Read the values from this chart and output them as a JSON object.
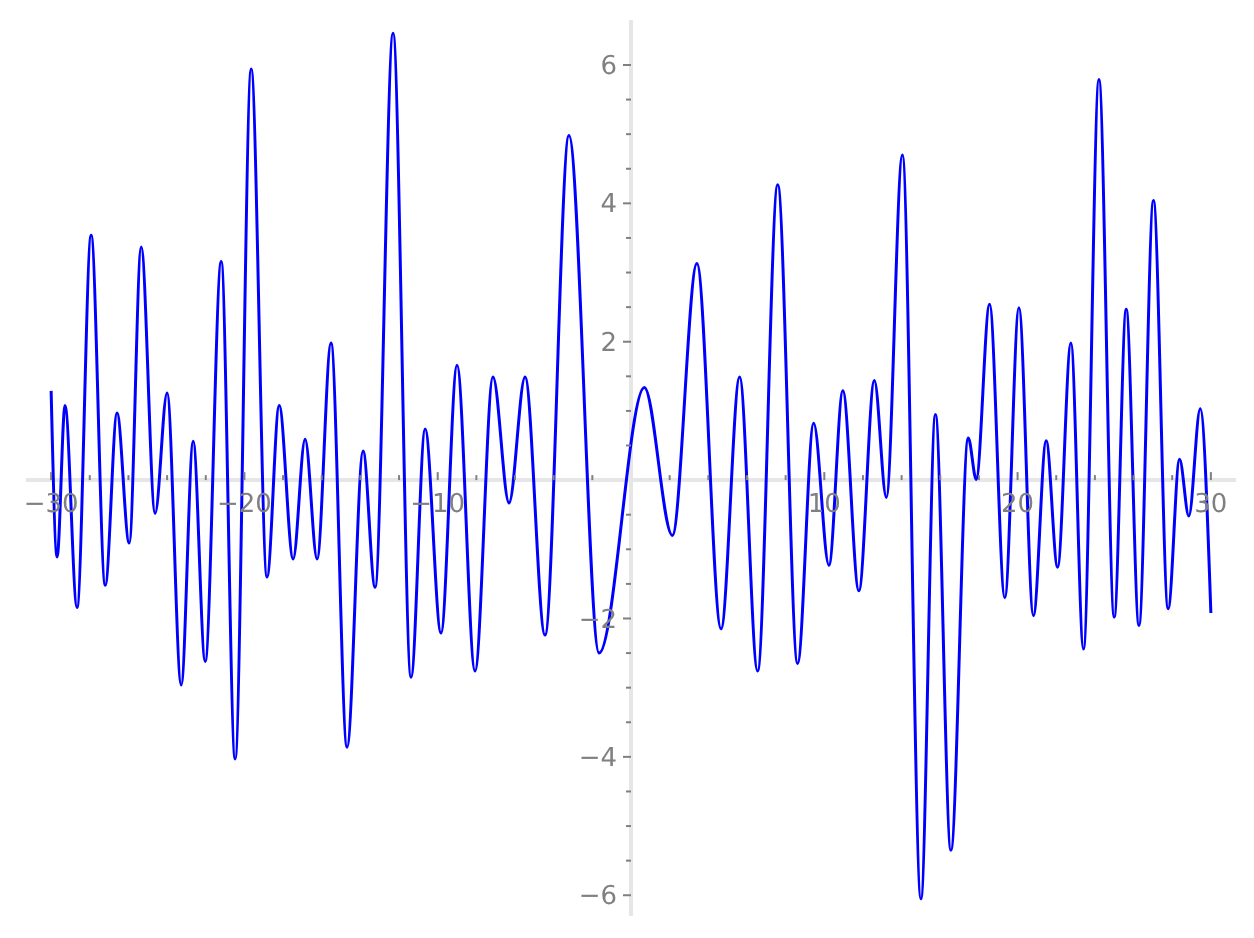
{
  "chart_data": {
    "type": "line",
    "marker": "none",
    "x": [
      -30,
      -29.69,
      -29.28,
      -28.66,
      -27.93,
      -27.2,
      -26.59,
      -25.96,
      -25.34,
      -24.62,
      -24.0,
      -23.27,
      -22.65,
      -22.03,
      -21.2,
      -20.48,
      -19.65,
      -18.83,
      -18.2,
      -17.48,
      -16.86,
      -16.24,
      -15.52,
      -14.69,
      -13.86,
      -13.24,
      -12.31,
      -11.38,
      -10.65,
      -9.83,
      -9.0,
      -8.07,
      -7.14,
      -6.31,
      -5.48,
      -4.45,
      -3.21,
      -1.65,
      0.69,
      2.14,
      3.41,
      4.66,
      5.62,
      6.55,
      7.59,
      8.62,
      9.45,
      10.24,
      10.96,
      11.79,
      12.59,
      13.21,
      14.04,
      15.0,
      15.75,
      16.55,
      17.45,
      17.86,
      18.55,
      19.34,
      20.07,
      20.82,
      21.48,
      22.07,
      22.76,
      23.41,
      24.21,
      25.0,
      25.62,
      26.28,
      27.03,
      27.79,
      28.38,
      28.86,
      29.45,
      30
    ],
    "series": [
      {
        "color": "#0000ff",
        "values": [
          1.29,
          -1.11,
          1.08,
          -1.84,
          3.54,
          -1.52,
          0.97,
          -0.91,
          3.37,
          -0.48,
          1.26,
          -2.96,
          0.56,
          -2.62,
          3.16,
          -4.03,
          5.94,
          -1.4,
          1.08,
          -1.14,
          0.59,
          -1.14,
          1.98,
          -3.86,
          0.42,
          -1.55,
          6.46,
          -2.85,
          0.74,
          -2.21,
          1.66,
          -2.76,
          1.49,
          -0.33,
          1.49,
          -2.24,
          4.98,
          -2.5,
          1.34,
          -0.8,
          3.13,
          -2.15,
          1.49,
          -2.76,
          4.27,
          -2.65,
          0.82,
          -1.23,
          1.29,
          -1.6,
          1.44,
          -0.25,
          4.7,
          -6.05,
          0.95,
          -5.35,
          0.61,
          0.01,
          2.54,
          -1.7,
          2.49,
          -1.96,
          0.57,
          -1.26,
          1.98,
          -2.44,
          5.79,
          -1.98,
          2.47,
          -2.1,
          4.04,
          -1.86,
          0.3,
          -0.52,
          1.03,
          -1.92
        ]
      }
    ],
    "xlim": [
      -31.3,
      31.3
    ],
    "ylim": [
      -6.3,
      6.65
    ],
    "xticks": [
      {
        "value": -30,
        "label": "−30"
      },
      {
        "value": -28,
        "label": null
      },
      {
        "value": -26,
        "label": null
      },
      {
        "value": -24,
        "label": null
      },
      {
        "value": -22,
        "label": null
      },
      {
        "value": -20,
        "label": "−20"
      },
      {
        "value": -18,
        "label": null
      },
      {
        "value": -16,
        "label": null
      },
      {
        "value": -14,
        "label": null
      },
      {
        "value": -12,
        "label": null
      },
      {
        "value": -10,
        "label": "−10"
      },
      {
        "value": -8,
        "label": null
      },
      {
        "value": -6,
        "label": null
      },
      {
        "value": -4,
        "label": null
      },
      {
        "value": -2,
        "label": null
      },
      {
        "value": 2,
        "label": null
      },
      {
        "value": 4,
        "label": null
      },
      {
        "value": 6,
        "label": null
      },
      {
        "value": 8,
        "label": null
      },
      10,
      {
        "value": 12,
        "label": null
      },
      {
        "value": 14,
        "label": null
      },
      {
        "value": 16,
        "label": null
      },
      {
        "value": 18,
        "label": null
      },
      20,
      {
        "value": 22,
        "label": null
      },
      {
        "value": 24,
        "label": null
      },
      {
        "value": 26,
        "label": null
      },
      {
        "value": 28,
        "label": null
      },
      30
    ],
    "yticks": [
      {
        "value": -6,
        "label": "−6"
      },
      {
        "value": -5.5,
        "label": null
      },
      {
        "value": -5,
        "label": null
      },
      {
        "value": -4.5,
        "label": null
      },
      {
        "value": -4,
        "label": "−4"
      },
      {
        "value": -3.5,
        "label": null
      },
      {
        "value": -3,
        "label": null
      },
      {
        "value": -2.5,
        "label": null
      },
      {
        "value": -2,
        "label": "−2"
      },
      {
        "value": -1.5,
        "label": null
      },
      {
        "value": -1,
        "label": null
      },
      {
        "value": -0.5,
        "label": null
      },
      {
        "value": 0.5,
        "label": null
      },
      {
        "value": 1,
        "label": null
      },
      {
        "value": 1.5,
        "label": null
      },
      2,
      {
        "value": 2.5,
        "label": null
      },
      {
        "value": 3,
        "label": null
      },
      {
        "value": 3.5,
        "label": null
      },
      4,
      {
        "value": 4.5,
        "label": null
      },
      {
        "value": 5,
        "label": null
      },
      {
        "value": 5.5,
        "label": null
      },
      6
    ]
  }
}
